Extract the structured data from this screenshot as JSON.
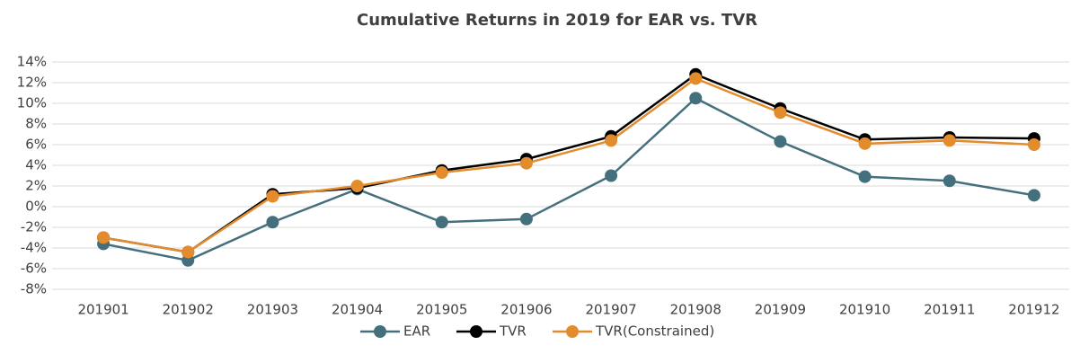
{
  "chart_data": {
    "type": "line",
    "title": "Cumulative Returns in 2019 for EAR vs. TVR",
    "categories": [
      "201901",
      "201902",
      "201903",
      "201904",
      "201905",
      "201906",
      "201907",
      "201908",
      "201909",
      "201910",
      "201911",
      "201912"
    ],
    "series": [
      {
        "name": "EAR",
        "color": "#44707e",
        "values": [
          -3.6,
          -5.2,
          -1.5,
          1.7,
          -1.5,
          -1.2,
          3.0,
          10.5,
          6.3,
          2.9,
          2.5,
          1.1
        ]
      },
      {
        "name": "TVR",
        "color": "#000000",
        "values": [
          -3.0,
          -4.4,
          1.2,
          1.8,
          3.5,
          4.6,
          6.8,
          12.8,
          9.5,
          6.5,
          6.7,
          6.6
        ]
      },
      {
        "name": "TVR(Constrained)",
        "color": "#e38c2d",
        "values": [
          -3.0,
          -4.4,
          1.0,
          2.0,
          3.3,
          4.2,
          6.4,
          12.4,
          9.1,
          6.1,
          6.4,
          6.0
        ]
      }
    ],
    "ylim": [
      -8,
      14
    ],
    "yticks": [
      {
        "value": -8,
        "label": "-8%"
      },
      {
        "value": -6,
        "label": "-6%"
      },
      {
        "value": -4,
        "label": "-4%"
      },
      {
        "value": -2,
        "label": "-2%"
      },
      {
        "value": 0,
        "label": "0%"
      },
      {
        "value": 2,
        "label": "2%"
      },
      {
        "value": 4,
        "label": "4%"
      },
      {
        "value": 6,
        "label": "6%"
      },
      {
        "value": 8,
        "label": "8%"
      },
      {
        "value": 10,
        "label": "10%"
      },
      {
        "value": 12,
        "label": "12%"
      },
      {
        "value": 14,
        "label": "14%"
      }
    ],
    "grid": true,
    "legend": "bottom"
  }
}
